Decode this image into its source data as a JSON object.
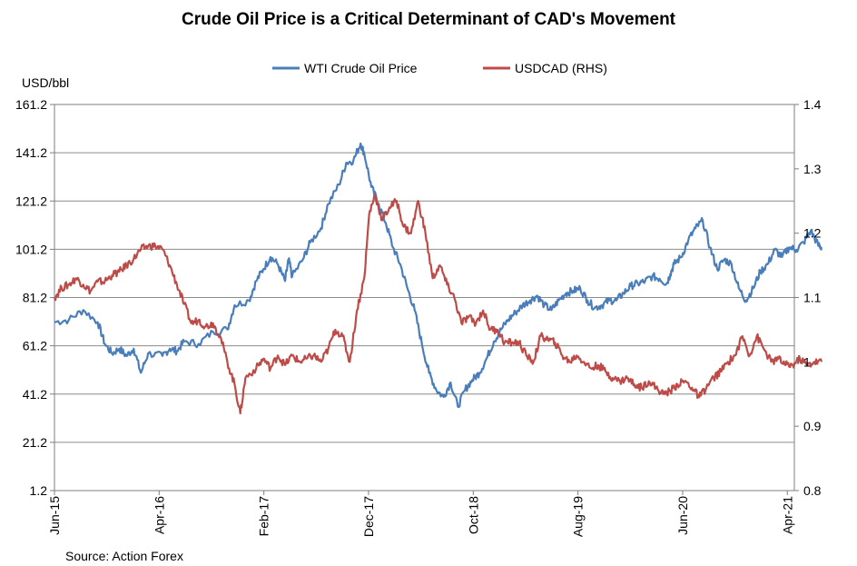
{
  "chart_data": {
    "type": "line",
    "title": "Crude Oil Price is a Critical Determinant of CAD's Movement",
    "ylabel_left": "USD/bbl",
    "source": "Source: Action Forex",
    "y_left": {
      "min": 1.2,
      "max": 161.2,
      "ticks": [
        "1.2",
        "21.2",
        "41.2",
        "61.2",
        "81.2",
        "101.2",
        "121.2",
        "141.2",
        "161.2"
      ]
    },
    "y_right": {
      "min": 0.8,
      "max": 1.4,
      "ticks": [
        "0.8",
        "0.9",
        "1",
        "1.1",
        "1.2",
        "1.3",
        "1.4"
      ]
    },
    "x_ticks": [
      {
        "label": "Jun-15",
        "t": 0.0
      },
      {
        "label": "Apr-16",
        "t": 0.1453
      },
      {
        "label": "Feb-17",
        "t": 0.2907
      },
      {
        "label": "Dec-17",
        "t": 0.436
      },
      {
        "label": "Oct-18",
        "t": 0.5814
      },
      {
        "label": "Aug-19",
        "t": 0.7267
      },
      {
        "label": "Jun-20",
        "t": 0.8721
      },
      {
        "label": "Apr-21",
        "t": 1.0174
      }
    ],
    "grid": true,
    "legend_position": "top-center",
    "series": [
      {
        "name": "WTI Crude Oil Price",
        "axis": "left",
        "color": "#4a7ebb",
        "points": [
          [
            0.0,
            71
          ],
          [
            0.02,
            72
          ],
          [
            0.04,
            76
          ],
          [
            0.06,
            71
          ],
          [
            0.07,
            62
          ],
          [
            0.08,
            58
          ],
          [
            0.09,
            60
          ],
          [
            0.1,
            57
          ],
          [
            0.11,
            60
          ],
          [
            0.12,
            50
          ],
          [
            0.13,
            58
          ],
          [
            0.15,
            57
          ],
          [
            0.16,
            60
          ],
          [
            0.17,
            59
          ],
          [
            0.18,
            63
          ],
          [
            0.2,
            62
          ],
          [
            0.22,
            67
          ],
          [
            0.24,
            68
          ],
          [
            0.25,
            78
          ],
          [
            0.27,
            80
          ],
          [
            0.28,
            88
          ],
          [
            0.29,
            93
          ],
          [
            0.3,
            98
          ],
          [
            0.31,
            95
          ],
          [
            0.32,
            88
          ],
          [
            0.325,
            97
          ],
          [
            0.33,
            90
          ],
          [
            0.345,
            97
          ],
          [
            0.355,
            104
          ],
          [
            0.37,
            110
          ],
          [
            0.38,
            120
          ],
          [
            0.395,
            128
          ],
          [
            0.405,
            137
          ],
          [
            0.415,
            138
          ],
          [
            0.425,
            145
          ],
          [
            0.43,
            141
          ],
          [
            0.44,
            127
          ],
          [
            0.45,
            120
          ],
          [
            0.46,
            112
          ],
          [
            0.47,
            102
          ],
          [
            0.48,
            95
          ],
          [
            0.49,
            85
          ],
          [
            0.5,
            76
          ],
          [
            0.51,
            62
          ],
          [
            0.52,
            50
          ],
          [
            0.53,
            43
          ],
          [
            0.54,
            40
          ],
          [
            0.55,
            46
          ],
          [
            0.56,
            36
          ],
          [
            0.57,
            43
          ],
          [
            0.58,
            47
          ],
          [
            0.59,
            50
          ],
          [
            0.6,
            56
          ],
          [
            0.61,
            63
          ],
          [
            0.62,
            68
          ],
          [
            0.63,
            72
          ],
          [
            0.64,
            75
          ],
          [
            0.65,
            78
          ],
          [
            0.66,
            80
          ],
          [
            0.67,
            82
          ],
          [
            0.68,
            78
          ],
          [
            0.69,
            76
          ],
          [
            0.7,
            80
          ],
          [
            0.71,
            83
          ],
          [
            0.72,
            84
          ],
          [
            0.73,
            85
          ],
          [
            0.74,
            80
          ],
          [
            0.75,
            77
          ],
          [
            0.76,
            78
          ],
          [
            0.77,
            80
          ],
          [
            0.78,
            80
          ],
          [
            0.79,
            83
          ],
          [
            0.8,
            86
          ],
          [
            0.81,
            87
          ],
          [
            0.82,
            88
          ],
          [
            0.83,
            90
          ],
          [
            0.84,
            89
          ],
          [
            0.85,
            87
          ],
          [
            0.855,
            91
          ],
          [
            0.86,
            95
          ],
          [
            0.87,
            98
          ],
          [
            0.88,
            105
          ],
          [
            0.89,
            110
          ],
          [
            0.9,
            113
          ],
          [
            0.91,
            102
          ],
          [
            0.92,
            93
          ],
          [
            0.93,
            97
          ],
          [
            0.94,
            95
          ],
          [
            0.95,
            85
          ],
          [
            0.96,
            80
          ],
          [
            0.97,
            85
          ],
          [
            0.98,
            92
          ],
          [
            0.99,
            95
          ],
          [
            1.0,
            101
          ],
          [
            1.01,
            98
          ],
          [
            1.02,
            102
          ],
          [
            1.03,
            101
          ],
          [
            1.04,
            104
          ],
          [
            1.05,
            109
          ],
          [
            1.06,
            103
          ],
          [
            1.065,
            102
          ]
        ]
      },
      {
        "name": "USDCAD (RHS)",
        "axis": "right",
        "color": "#be4b48",
        "points": [
          [
            0.0,
            1.1
          ],
          [
            0.01,
            1.115
          ],
          [
            0.02,
            1.12
          ],
          [
            0.03,
            1.13
          ],
          [
            0.04,
            1.12
          ],
          [
            0.05,
            1.11
          ],
          [
            0.06,
            1.125
          ],
          [
            0.07,
            1.125
          ],
          [
            0.08,
            1.135
          ],
          [
            0.09,
            1.14
          ],
          [
            0.1,
            1.15
          ],
          [
            0.11,
            1.16
          ],
          [
            0.12,
            1.175
          ],
          [
            0.13,
            1.18
          ],
          [
            0.14,
            1.18
          ],
          [
            0.15,
            1.175
          ],
          [
            0.16,
            1.15
          ],
          [
            0.17,
            1.12
          ],
          [
            0.18,
            1.09
          ],
          [
            0.19,
            1.06
          ],
          [
            0.2,
            1.065
          ],
          [
            0.21,
            1.055
          ],
          [
            0.22,
            1.06
          ],
          [
            0.23,
            1.04
          ],
          [
            0.24,
            1.0
          ],
          [
            0.25,
            0.965
          ],
          [
            0.258,
            0.92
          ],
          [
            0.265,
            0.975
          ],
          [
            0.28,
            0.99
          ],
          [
            0.29,
            1.005
          ],
          [
            0.3,
            0.99
          ],
          [
            0.31,
            1.01
          ],
          [
            0.32,
            0.995
          ],
          [
            0.33,
            1.01
          ],
          [
            0.34,
            1.0
          ],
          [
            0.35,
            1.005
          ],
          [
            0.36,
            1.01
          ],
          [
            0.37,
            1.0
          ],
          [
            0.38,
            1.02
          ],
          [
            0.39,
            1.05
          ],
          [
            0.4,
            1.04
          ],
          [
            0.41,
            1.0
          ],
          [
            0.42,
            1.08
          ],
          [
            0.43,
            1.13
          ],
          [
            0.437,
            1.23
          ],
          [
            0.445,
            1.26
          ],
          [
            0.455,
            1.22
          ],
          [
            0.465,
            1.24
          ],
          [
            0.475,
            1.25
          ],
          [
            0.485,
            1.21
          ],
          [
            0.495,
            1.2
          ],
          [
            0.505,
            1.25
          ],
          [
            0.515,
            1.2
          ],
          [
            0.525,
            1.13
          ],
          [
            0.535,
            1.15
          ],
          [
            0.545,
            1.12
          ],
          [
            0.555,
            1.1
          ],
          [
            0.565,
            1.06
          ],
          [
            0.575,
            1.07
          ],
          [
            0.585,
            1.06
          ],
          [
            0.595,
            1.08
          ],
          [
            0.605,
            1.05
          ],
          [
            0.615,
            1.05
          ],
          [
            0.625,
            1.03
          ],
          [
            0.635,
            1.03
          ],
          [
            0.645,
            1.03
          ],
          [
            0.655,
            1.01
          ],
          [
            0.665,
            1.0
          ],
          [
            0.675,
            1.04
          ],
          [
            0.685,
            1.035
          ],
          [
            0.695,
            1.03
          ],
          [
            0.705,
            1.01
          ],
          [
            0.715,
            1.0
          ],
          [
            0.725,
            1.01
          ],
          [
            0.735,
            1.0
          ],
          [
            0.745,
            0.99
          ],
          [
            0.755,
            0.995
          ],
          [
            0.765,
            0.985
          ],
          [
            0.775,
            0.975
          ],
          [
            0.785,
            0.97
          ],
          [
            0.795,
            0.975
          ],
          [
            0.805,
            0.965
          ],
          [
            0.815,
            0.96
          ],
          [
            0.825,
            0.97
          ],
          [
            0.835,
            0.96
          ],
          [
            0.845,
            0.95
          ],
          [
            0.855,
            0.955
          ],
          [
            0.865,
            0.965
          ],
          [
            0.875,
            0.97
          ],
          [
            0.885,
            0.96
          ],
          [
            0.895,
            0.945
          ],
          [
            0.905,
            0.96
          ],
          [
            0.915,
            0.975
          ],
          [
            0.925,
            0.985
          ],
          [
            0.935,
            1.0
          ],
          [
            0.945,
            1.01
          ],
          [
            0.955,
            1.04
          ],
          [
            0.965,
            1.01
          ],
          [
            0.975,
            1.04
          ],
          [
            0.985,
            1.02
          ],
          [
            0.995,
            1.0
          ],
          [
            1.005,
            1.005
          ],
          [
            1.015,
            0.995
          ],
          [
            1.025,
            0.995
          ],
          [
            1.035,
            1.005
          ],
          [
            1.045,
            0.995
          ],
          [
            1.055,
            1.0
          ],
          [
            1.065,
            1.0
          ]
        ]
      }
    ]
  }
}
